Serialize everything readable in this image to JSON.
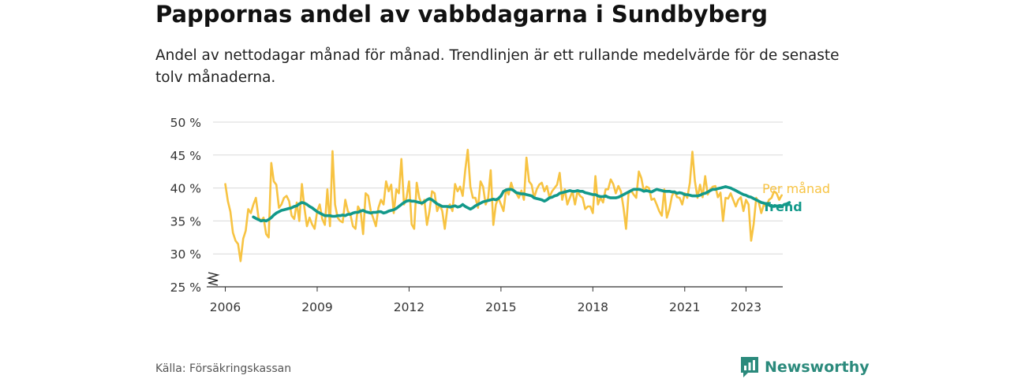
{
  "header": {
    "title": "Pappornas andel av vabbdagarna i Sundbyberg",
    "subtitle": "Andel av nettodagar månad för månad. Trendlinjen är ett rullande medelvärde för de senaste tolv månaderna."
  },
  "footer": {
    "source": "Källa: Försäkringskassan",
    "brand": "Newsworthy",
    "brand_icon": "bar-chart-logo-icon"
  },
  "colors": {
    "monthly": "#f7c342",
    "trend": "#12998a",
    "grid": "#d9d9d9",
    "axis": "#333333",
    "brand": "#2b8a7c"
  },
  "chart_data": {
    "type": "line",
    "title": "Pappornas andel av vabbdagarna i Sundbyberg",
    "ylim": [
      25,
      50
    ],
    "y_ticks": [
      "25 %",
      "30 %",
      "35 %",
      "40 %",
      "45 %",
      "50 %"
    ],
    "y_tick_values": [
      25,
      30,
      35,
      40,
      45,
      50
    ],
    "x_ticks": [
      "2006",
      "2009",
      "2012",
      "2015",
      "2018",
      "2021",
      "2023"
    ],
    "x_tick_values": [
      2006,
      2009,
      2012,
      2015,
      2018,
      2021,
      2023
    ],
    "xlim": [
      2005.6,
      2024.2
    ],
    "grid": true,
    "y_axis_break": true,
    "series": [
      {
        "name": "Per månad",
        "x_start": "2006-01",
        "frequency": "monthly",
        "values": [
          40.6,
          38,
          36.4,
          33.2,
          32,
          31.5,
          28.9,
          32.3,
          33.5,
          36.8,
          36.2,
          37.5,
          38.5,
          35.5,
          35,
          35.5,
          33,
          32.5,
          43.8,
          41,
          40.5,
          37,
          37.5,
          38.5,
          38.8,
          38,
          35.8,
          35.3,
          37.8,
          35,
          40.6,
          37,
          34.2,
          35.5,
          34.5,
          33.8,
          36.5,
          37.5,
          35.3,
          34.4,
          39.8,
          34.2,
          45.6,
          37.5,
          35.5,
          35,
          34.8,
          38.2,
          36.5,
          36,
          34.2,
          33.8,
          37.2,
          36.5,
          33,
          39.2,
          38.8,
          36.5,
          35.4,
          34.2,
          37,
          38.2,
          37.5,
          41,
          39.5,
          40.5,
          36.2,
          39.8,
          39.2,
          44.4,
          37.5,
          38.5,
          41,
          34.5,
          33.8,
          40.8,
          38.5,
          37.5,
          38.2,
          34.4,
          36.5,
          39.5,
          39.2,
          36.5,
          37.5,
          36.5,
          33.8,
          37,
          37.5,
          36.5,
          40.6,
          39.5,
          40.2,
          38.8,
          42.7,
          45.8,
          40.2,
          38.5,
          38.5,
          37,
          41,
          40.2,
          37.5,
          38.5,
          42.7,
          34.4,
          37.5,
          38.5,
          37.5,
          36.5,
          39.8,
          39,
          40.8,
          39.5,
          39.2,
          38.5,
          39.6,
          38.2,
          44.6,
          41,
          40.5,
          38.5,
          39.8,
          40.5,
          40.8,
          39.5,
          40.3,
          38.6,
          39.5,
          40,
          40.5,
          42.3,
          38.2,
          39.8,
          37.5,
          38.5,
          39.5,
          37.5,
          39.5,
          38.8,
          38.5,
          36.8,
          37.2,
          37.2,
          36.2,
          41.8,
          37.5,
          38.5,
          37.8,
          39.8,
          39.8,
          41.3,
          40.6,
          39.2,
          40.3,
          39.5,
          37,
          33.8,
          39.2,
          39.6,
          39,
          38.5,
          42.5,
          41.5,
          39.5,
          40.2,
          40,
          38.2,
          38.4,
          37.5,
          36.5,
          35.8,
          39.8,
          35.5,
          36.8,
          38.8,
          39.5,
          38.6,
          38.5,
          37.5,
          39.2,
          38.5,
          40.8,
          45.5,
          41,
          38.5,
          40.5,
          38.6,
          41.8,
          39,
          39.8,
          40.2,
          40.3,
          38.6,
          39.3,
          35,
          38.5,
          38.4,
          39.2,
          38.2,
          37.2,
          38.2,
          38.6,
          36.5,
          38.2,
          37.5,
          32,
          34.5,
          38.5,
          37.8,
          36.2,
          37.5,
          37.2,
          38.2,
          38.5,
          39.5,
          39.2,
          38.2,
          38.9
        ]
      },
      {
        "name": "Trend",
        "x_start": "2006-12",
        "frequency": "monthly",
        "values": [
          35.6,
          35.4,
          35.2,
          35,
          35.1,
          35,
          35.2,
          35.5,
          35.9,
          36.2,
          36.4,
          36.6,
          36.7,
          36.8,
          36.9,
          37,
          37.2,
          37.3,
          37.6,
          37.8,
          37.7,
          37.5,
          37.2,
          37,
          36.7,
          36.4,
          36.2,
          36,
          35.8,
          35.8,
          35.8,
          35.7,
          35.7,
          35.8,
          35.8,
          35.9,
          35.8,
          36,
          36,
          36.2,
          36.3,
          36.3,
          36.5,
          36.6,
          36.4,
          36.3,
          36.2,
          36.3,
          36.3,
          36.4,
          36.4,
          36.2,
          36.3,
          36.5,
          36.6,
          36.7,
          36.9,
          37.2,
          37.5,
          37.8,
          38,
          38.1,
          38,
          38,
          37.9,
          37.8,
          37.7,
          37.9,
          38.2,
          38.4,
          38.2,
          37.9,
          37.6,
          37.4,
          37.2,
          37.2,
          37.2,
          37.1,
          37.2,
          37.3,
          37.1,
          37.2,
          37.5,
          37.2,
          37,
          36.8,
          37,
          37.3,
          37.5,
          37.7,
          37.9,
          38,
          38.1,
          38.2,
          38.3,
          38.2,
          38.4,
          38.8,
          39.5,
          39.7,
          39.8,
          39.8,
          39.6,
          39.3,
          39.2,
          39.1,
          39.1,
          39,
          38.9,
          38.8,
          38.5,
          38.4,
          38.3,
          38.2,
          38,
          38.2,
          38.5,
          38.6,
          38.8,
          38.9,
          39.2,
          39.3,
          39.4,
          39.5,
          39.6,
          39.5,
          39.5,
          39.6,
          39.5,
          39.5,
          39.3,
          39.2,
          39.1,
          39,
          39,
          38.8,
          38.7,
          38.7,
          38.8,
          38.6,
          38.5,
          38.5,
          38.5,
          38.6,
          38.8,
          39,
          39.2,
          39.4,
          39.6,
          39.8,
          39.8,
          39.8,
          39.7,
          39.5,
          39.6,
          39.5,
          39.4,
          39.6,
          39.8,
          39.7,
          39.6,
          39.5,
          39.5,
          39.5,
          39.4,
          39.4,
          39.2,
          39.3,
          39.2,
          39,
          39,
          38.9,
          38.8,
          38.8,
          38.8,
          38.9,
          39.1,
          39.2,
          39.4,
          39.6,
          39.8,
          39.8,
          39.9,
          40,
          40.1,
          40.2,
          40.1,
          40,
          39.8,
          39.6,
          39.4,
          39.2,
          39,
          38.9,
          38.7,
          38.6,
          38.4,
          38.2,
          38,
          37.8,
          37.7,
          37.6,
          37.4,
          37.2,
          37.2,
          37.3,
          37.2,
          37.2,
          37.5,
          37.6,
          37.8
        ]
      }
    ]
  }
}
